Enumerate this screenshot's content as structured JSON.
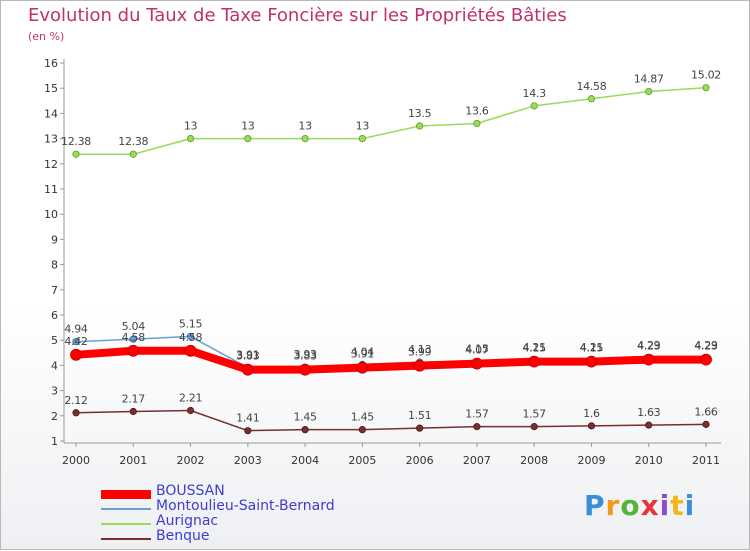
{
  "chart_data": {
    "type": "line",
    "title": "Evolution du Taux de Taxe Foncière sur les Propriétés Bâties",
    "subtitle": "(en %)",
    "x": [
      "2000",
      "2001",
      "2002",
      "2003",
      "2004",
      "2005",
      "2006",
      "2007",
      "2008",
      "2009",
      "2010",
      "2011"
    ],
    "ylim": [
      1,
      16
    ],
    "yticks": [
      "1",
      "2",
      "3",
      "4",
      "5",
      "6",
      "7",
      "8",
      "9",
      "10",
      "11",
      "12",
      "13",
      "14",
      "15",
      "16"
    ],
    "grid": false,
    "legend_position": "bottom-left",
    "series": [
      {
        "name": "BOUSSAN",
        "color": "#ff0000",
        "values": [
          4.42,
          4.58,
          4.58,
          3.83,
          3.83,
          3.91,
          3.99,
          4.07,
          4.15,
          4.15,
          4.23,
          4.23
        ],
        "labels": [
          "4.42",
          "4.58",
          "4.58",
          "3.83",
          "3.83",
          "3.91",
          "3.99",
          "4.07",
          "4.15",
          "4.15",
          "4.23",
          "4.23"
        ]
      },
      {
        "name": "Montoulieu-Saint-Bernard",
        "color": "#6a9fd4",
        "values": [
          4.94,
          5.04,
          5.15,
          3.91,
          3.93,
          4.04,
          4.13,
          4.15,
          4.21,
          4.21,
          4.29,
          4.29
        ],
        "labels": [
          "4.94",
          "5.04",
          "5.15",
          "3.91",
          "3.93",
          "4.04",
          "4.13",
          "4.15",
          "4.21",
          "4.21",
          "4.29",
          "4.29"
        ]
      },
      {
        "name": "Aurignac",
        "color": "#98dc5a",
        "values": [
          12.38,
          12.38,
          13,
          13,
          13,
          13,
          13.5,
          13.6,
          14.3,
          14.58,
          14.87,
          15.02
        ],
        "labels": [
          "12.38",
          "12.38",
          "13",
          "13",
          "13",
          "13",
          "13.5",
          "13.6",
          "14.3",
          "14.58",
          "14.87",
          "15.02"
        ]
      },
      {
        "name": "Benque",
        "color": "#7a2e2e",
        "values": [
          2.12,
          2.17,
          2.21,
          1.41,
          1.45,
          1.45,
          1.51,
          1.57,
          1.57,
          1.6,
          1.63,
          1.66
        ],
        "labels": [
          "2.12",
          "2.17",
          "2.21",
          "1.41",
          "1.45",
          "1.45",
          "1.51",
          "1.57",
          "1.57",
          "1.6",
          "1.63",
          "1.66"
        ]
      }
    ]
  },
  "logo": {
    "letters": [
      "P",
      "r",
      "o",
      "x",
      "i",
      "t",
      "i"
    ],
    "colors": [
      "#3a8fd8",
      "#f29a1c",
      "#56b33a",
      "#e8353a",
      "#8a4cc7",
      "#f2b51c",
      "#3a8fd8"
    ]
  }
}
